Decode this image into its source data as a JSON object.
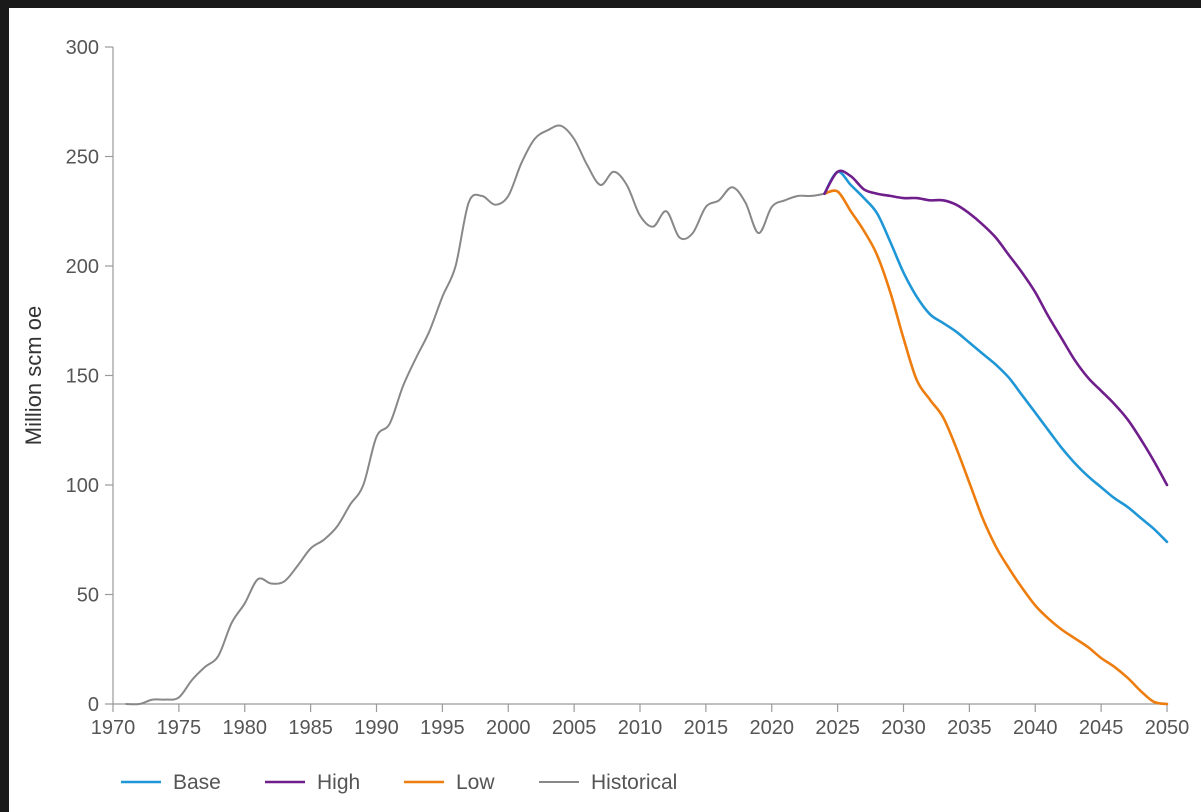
{
  "chart_data": {
    "type": "line",
    "title": "",
    "xlabel": "",
    "ylabel": "Million scm oe",
    "xlim": [
      1970,
      2050
    ],
    "ylim": [
      0,
      300
    ],
    "xticks": [
      1970,
      1975,
      1980,
      1985,
      1990,
      1995,
      2000,
      2005,
      2010,
      2015,
      2020,
      2025,
      2030,
      2035,
      2040,
      2045,
      2050
    ],
    "yticks": [
      0,
      50,
      100,
      150,
      200,
      250,
      300
    ],
    "grid": false,
    "legend_position": "bottom-left",
    "series": [
      {
        "name": "Base",
        "color": "#1f97d6",
        "x": [
          2024,
          2025,
          2026,
          2027,
          2028,
          2029,
          2030,
          2031,
          2032,
          2033,
          2034,
          2035,
          2036,
          2037,
          2038,
          2039,
          2040,
          2041,
          2042,
          2043,
          2044,
          2045,
          2046,
          2047,
          2048,
          2049,
          2050
        ],
        "y": [
          233,
          243,
          237,
          231,
          224,
          211,
          197,
          186,
          178,
          174,
          170,
          165,
          160,
          155,
          149,
          141,
          133,
          125,
          117,
          110,
          104,
          99,
          94,
          90,
          85,
          80,
          74
        ]
      },
      {
        "name": "High",
        "color": "#6f1e8c",
        "x": [
          2024,
          2025,
          2026,
          2027,
          2028,
          2029,
          2030,
          2031,
          2032,
          2033,
          2034,
          2035,
          2036,
          2037,
          2038,
          2039,
          2040,
          2041,
          2042,
          2043,
          2044,
          2045,
          2046,
          2047,
          2048,
          2049,
          2050
        ],
        "y": [
          233,
          243,
          241,
          235,
          233,
          232,
          231,
          231,
          230,
          230,
          228,
          224,
          219,
          213,
          205,
          197,
          188,
          177,
          167,
          157,
          149,
          143,
          137,
          130,
          121,
          111,
          100
        ]
      },
      {
        "name": "Low",
        "color": "#ee7d0f",
        "x": [
          2024,
          2025,
          2026,
          2027,
          2028,
          2029,
          2030,
          2031,
          2032,
          2033,
          2034,
          2035,
          2036,
          2037,
          2038,
          2039,
          2040,
          2041,
          2042,
          2043,
          2044,
          2045,
          2046,
          2047,
          2048,
          2049,
          2050
        ],
        "y": [
          233,
          234,
          225,
          216,
          205,
          188,
          167,
          148,
          139,
          131,
          117,
          101,
          85,
          72,
          62,
          53,
          45,
          39,
          34,
          30,
          26,
          21,
          17,
          12,
          6,
          1,
          0
        ]
      },
      {
        "name": "Historical",
        "color": "#888888",
        "x": [
          1971,
          1972,
          1973,
          1974,
          1975,
          1976,
          1977,
          1978,
          1979,
          1980,
          1981,
          1982,
          1983,
          1984,
          1985,
          1986,
          1987,
          1988,
          1989,
          1990,
          1991,
          1992,
          1993,
          1994,
          1995,
          1996,
          1997,
          1998,
          1999,
          2000,
          2001,
          2002,
          2003,
          2004,
          2005,
          2006,
          2007,
          2008,
          2009,
          2010,
          2011,
          2012,
          2013,
          2014,
          2015,
          2016,
          2017,
          2018,
          2019,
          2020,
          2021,
          2022,
          2023,
          2024
        ],
        "y": [
          0,
          0,
          2,
          2,
          3,
          11,
          17,
          22,
          37,
          46,
          57,
          55,
          56,
          63,
          71,
          75,
          81,
          91,
          100,
          122,
          128,
          145,
          158,
          170,
          186,
          200,
          229,
          232,
          228,
          232,
          247,
          258,
          262,
          264,
          258,
          246,
          237,
          243,
          237,
          223,
          218,
          225,
          213,
          215,
          227,
          230,
          236,
          229,
          215,
          227,
          230,
          232,
          232,
          233
        ]
      }
    ]
  }
}
